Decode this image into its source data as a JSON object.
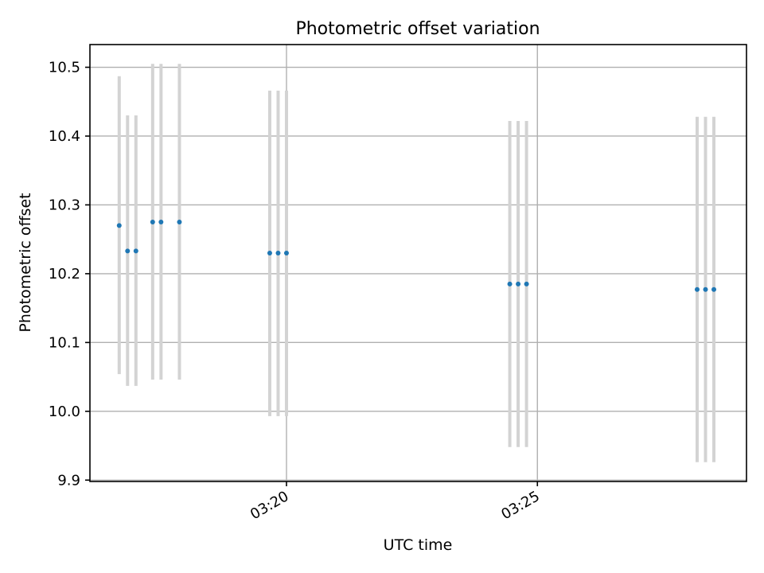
{
  "chart_data": {
    "type": "scatter",
    "title": "Photometric offset variation",
    "xlabel": "UTC time",
    "ylabel": "Photometric offset",
    "x_axis_type": "time",
    "xlim": [
      "03:16:05",
      "03:29:10"
    ],
    "ylim": [
      9.898,
      10.533
    ],
    "grid": true,
    "x_ticks": [
      {
        "value": "03:20:00",
        "label": "03:20"
      },
      {
        "value": "03:25:00",
        "label": "03:25"
      }
    ],
    "y_ticks": [
      {
        "value": 9.9,
        "label": "9.9"
      },
      {
        "value": 10.0,
        "label": "10.0"
      },
      {
        "value": 10.1,
        "label": "10.1"
      },
      {
        "value": 10.2,
        "label": "10.2"
      },
      {
        "value": 10.3,
        "label": "10.3"
      },
      {
        "value": 10.4,
        "label": "10.4"
      },
      {
        "value": 10.5,
        "label": "10.5"
      }
    ],
    "point_color": "#1f77b4",
    "errorbar_color": "#d3d3d3",
    "points": [
      {
        "x": "03:16:40",
        "y": 10.27,
        "ylow": 10.054,
        "yhigh": 10.487
      },
      {
        "x": "03:16:50",
        "y": 10.233,
        "ylow": 10.037,
        "yhigh": 10.43
      },
      {
        "x": "03:17:00",
        "y": 10.233,
        "ylow": 10.037,
        "yhigh": 10.43
      },
      {
        "x": "03:17:20",
        "y": 10.275,
        "ylow": 10.046,
        "yhigh": 10.505
      },
      {
        "x": "03:17:30",
        "y": 10.275,
        "ylow": 10.046,
        "yhigh": 10.505
      },
      {
        "x": "03:17:52",
        "y": 10.275,
        "ylow": 10.046,
        "yhigh": 10.505
      },
      {
        "x": "03:19:40",
        "y": 10.23,
        "ylow": 9.993,
        "yhigh": 10.466
      },
      {
        "x": "03:19:50",
        "y": 10.23,
        "ylow": 9.993,
        "yhigh": 10.466
      },
      {
        "x": "03:20:00",
        "y": 10.23,
        "ylow": 9.993,
        "yhigh": 10.466
      },
      {
        "x": "03:24:27",
        "y": 10.185,
        "ylow": 9.948,
        "yhigh": 10.422
      },
      {
        "x": "03:24:37",
        "y": 10.185,
        "ylow": 9.948,
        "yhigh": 10.422
      },
      {
        "x": "03:24:47",
        "y": 10.185,
        "ylow": 9.948,
        "yhigh": 10.422
      },
      {
        "x": "03:28:11",
        "y": 10.177,
        "ylow": 9.926,
        "yhigh": 10.428
      },
      {
        "x": "03:28:21",
        "y": 10.177,
        "ylow": 9.926,
        "yhigh": 10.428
      },
      {
        "x": "03:28:31",
        "y": 10.177,
        "ylow": 9.926,
        "yhigh": 10.428
      }
    ]
  }
}
